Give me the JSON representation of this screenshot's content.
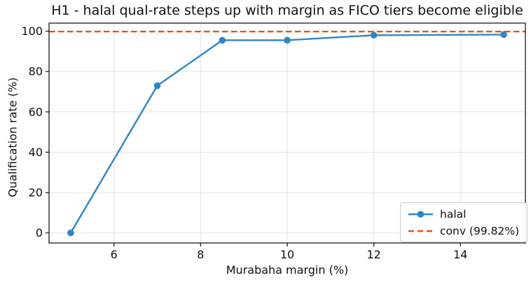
{
  "chart_data": {
    "type": "line",
    "title": "H1 - halal qual-rate steps up with margin as FICO tiers become eligible",
    "xlabel": "Murabaha margin (%)",
    "ylabel": "Qualification rate (%)",
    "xlim": [
      4.5,
      15.5
    ],
    "ylim": [
      -5,
      104
    ],
    "xticks": [
      6,
      8,
      10,
      12,
      14
    ],
    "yticks": [
      0,
      20,
      40,
      60,
      80,
      100
    ],
    "grid": true,
    "legend_position": "lower right",
    "series": [
      {
        "name": "halal",
        "type": "line",
        "marker": "circle",
        "color": "#2f86c4",
        "x": [
          5,
          7,
          8.5,
          10,
          12,
          15
        ],
        "y": [
          0,
          73,
          95.5,
          95.5,
          98.0,
          98.3
        ]
      },
      {
        "name": "conv (99.82%)",
        "type": "hline",
        "linestyle": "dashed",
        "color": "#e6550d",
        "y": 99.82
      }
    ],
    "style": {
      "grid_color": "#e3e3e3",
      "spine_color": "#1a1a1a",
      "text_color": "#111111",
      "background": "#ffffff",
      "legend_border": "#cccccc"
    }
  }
}
